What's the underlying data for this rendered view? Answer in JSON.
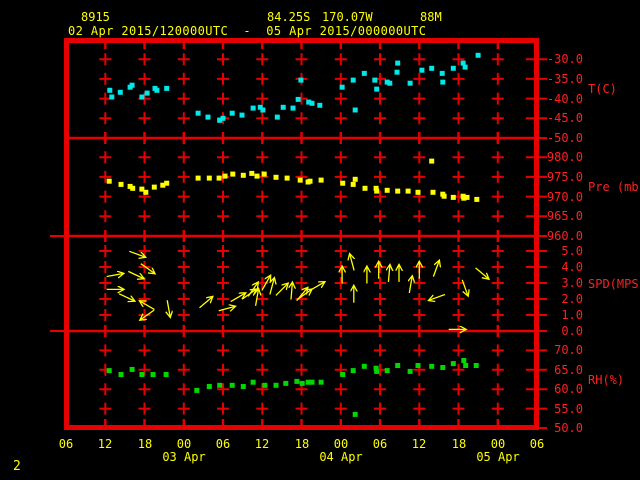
{
  "header": {
    "station_id": "8915",
    "latitude": "84.25S",
    "longitude": "170.07W",
    "elevation": "88M",
    "time_range": "02 Apr 2015/120000UTC  -  05 Apr 2015/000000UTC"
  },
  "page_number": "2",
  "colors": {
    "background": "#000000",
    "grid": "#e60000",
    "axis_text": "#ff2020",
    "header_text": "#ffff00",
    "temperature": "#00e8e8",
    "pressure": "#ffff00",
    "wind": "#ffff00",
    "humidity": "#00d800"
  },
  "chart_data": {
    "type": "scatter",
    "title": "02 Apr 2015/120000UTC - 05 Apr 2015/000000UTC",
    "x_axis": {
      "hours_span": 72,
      "tick_step_hours": 6,
      "hour_labels": [
        "06",
        "12",
        "18",
        "00",
        "06",
        "12",
        "18",
        "00",
        "06",
        "12",
        "18",
        "00",
        "06"
      ],
      "date_labels": [
        {
          "label": "03 Apr",
          "hour": 18
        },
        {
          "label": "04 Apr",
          "hour": 42
        },
        {
          "label": "05 Apr",
          "hour": 66
        }
      ]
    },
    "panels": [
      {
        "name": "temperature",
        "unit_label": "T(C)",
        "ticks": [
          -30,
          -35,
          -40,
          -45,
          -50
        ],
        "color": "#00e8e8",
        "points": [
          [
            6.7,
            -37.9
          ],
          [
            7,
            -39.6
          ],
          [
            8.3,
            -38.4
          ],
          [
            9.8,
            -37.1
          ],
          [
            10.1,
            -36.6
          ],
          [
            11.6,
            -39.6
          ],
          [
            12.4,
            -38.6
          ],
          [
            13.6,
            -37.4
          ],
          [
            13.9,
            -37.9
          ],
          [
            15.4,
            -37.4
          ],
          [
            20.2,
            -43.7
          ],
          [
            21.7,
            -44.7
          ],
          [
            23.5,
            -45.5
          ],
          [
            24,
            -45
          ],
          [
            25.4,
            -43.7
          ],
          [
            26.9,
            -44.2
          ],
          [
            28.6,
            -42.4
          ],
          [
            29.7,
            -42.2
          ],
          [
            30.1,
            -42.9
          ],
          [
            32.3,
            -44.7
          ],
          [
            33.2,
            -42.2
          ],
          [
            34.7,
            -42.4
          ],
          [
            35.5,
            -40.2
          ],
          [
            35.9,
            -35.3
          ],
          [
            37.1,
            -40.9
          ],
          [
            37.6,
            -41.2
          ],
          [
            38.8,
            -41.7
          ],
          [
            42.2,
            -37.1
          ],
          [
            43.9,
            -35.3
          ],
          [
            44.2,
            -42.9
          ],
          [
            45.6,
            -33.6
          ],
          [
            47.2,
            -35.3
          ],
          [
            47.5,
            -37.6
          ],
          [
            49.1,
            -35.8
          ],
          [
            49.5,
            -36.1
          ],
          [
            50.6,
            -33.3
          ],
          [
            50.7,
            -31
          ],
          [
            52.6,
            -36.1
          ],
          [
            54.4,
            -32.8
          ],
          [
            55.9,
            -32.3
          ],
          [
            57.5,
            -33.6
          ],
          [
            57.6,
            -35.8
          ],
          [
            59.2,
            -32.3
          ],
          [
            60.7,
            -31
          ],
          [
            61,
            -32
          ],
          [
            63,
            -29
          ]
        ]
      },
      {
        "name": "pressure",
        "unit_label": "Pre (mb)",
        "ticks": [
          980,
          975,
          970,
          965,
          960
        ],
        "color": "#ffff00",
        "points": [
          [
            6.6,
            973.9
          ],
          [
            8.4,
            973.1
          ],
          [
            9.8,
            972.6
          ],
          [
            10.2,
            972.1
          ],
          [
            11.6,
            971.9
          ],
          [
            12.2,
            971.1
          ],
          [
            13.5,
            972.4
          ],
          [
            14.8,
            972.9
          ],
          [
            15.4,
            973.4
          ],
          [
            20.2,
            974.7
          ],
          [
            21.9,
            974.7
          ],
          [
            23.4,
            974.7
          ],
          [
            24.3,
            975.2
          ],
          [
            25.5,
            975.7
          ],
          [
            27.1,
            975.4
          ],
          [
            28.4,
            975.9
          ],
          [
            29.2,
            975.2
          ],
          [
            30.3,
            975.7
          ],
          [
            32.1,
            974.9
          ],
          [
            33.8,
            974.7
          ],
          [
            35.8,
            974.2
          ],
          [
            37,
            973.7
          ],
          [
            37.3,
            973.9
          ],
          [
            39,
            974.2
          ],
          [
            42.3,
            973.4
          ],
          [
            43.9,
            973.1
          ],
          [
            44.2,
            974.4
          ],
          [
            45.7,
            972.1
          ],
          [
            47.4,
            972.1
          ],
          [
            47.5,
            971.4
          ],
          [
            49.1,
            971.6
          ],
          [
            50.7,
            971.4
          ],
          [
            52.3,
            971.4
          ],
          [
            53.8,
            971.1
          ],
          [
            55.9,
            979
          ],
          [
            56.1,
            971.1
          ],
          [
            57.6,
            970.6
          ],
          [
            57.8,
            970.1
          ],
          [
            59.2,
            969.8
          ],
          [
            60.7,
            970.1
          ],
          [
            60.8,
            969.6
          ],
          [
            61.3,
            969.8
          ],
          [
            62.8,
            969.3
          ]
        ]
      },
      {
        "name": "wind",
        "unit_label": "SPD(MPS)",
        "ticks": [
          5,
          4,
          3,
          2,
          1,
          0
        ],
        "color": "#ffff00",
        "arrows": [
          [
            10.9,
            4.8,
            -20
          ],
          [
            12.5,
            3.9,
            -35
          ],
          [
            7.5,
            3.5,
            10
          ],
          [
            10.7,
            3.5,
            -25
          ],
          [
            7.5,
            2.6,
            0
          ],
          [
            9.3,
            2.1,
            -25
          ],
          [
            12.4,
            1.6,
            150
          ],
          [
            12.4,
            1,
            215
          ],
          [
            15.7,
            1.4,
            -80
          ],
          [
            21.4,
            1.8,
            40
          ],
          [
            24.6,
            1.4,
            15
          ],
          [
            26.3,
            2.1,
            30
          ],
          [
            28,
            2.3,
            35
          ],
          [
            28.6,
            2.6,
            55
          ],
          [
            29.2,
            2.1,
            80
          ],
          [
            30.6,
            3,
            60
          ],
          [
            31.5,
            2.8,
            75
          ],
          [
            33,
            2.6,
            45
          ],
          [
            34.5,
            2.5,
            85
          ],
          [
            36.1,
            2.3,
            50
          ],
          [
            36.5,
            2.3,
            35
          ],
          [
            38.4,
            2.8,
            30
          ],
          [
            42.2,
            3.5,
            90
          ],
          [
            43.7,
            4.3,
            105
          ],
          [
            44,
            2.3,
            90
          ],
          [
            46,
            3.5,
            90
          ],
          [
            47.8,
            3.8,
            90
          ],
          [
            49.4,
            3.6,
            85
          ],
          [
            50.9,
            3.6,
            90
          ],
          [
            52.7,
            2.9,
            80
          ],
          [
            54,
            3.8,
            90
          ],
          [
            56.6,
            3.9,
            70
          ],
          [
            56.7,
            2.1,
            200
          ],
          [
            61,
            2.7,
            -70
          ],
          [
            63.6,
            3.6,
            -40
          ],
          [
            59.8,
            0.1,
            0
          ]
        ]
      },
      {
        "name": "humidity",
        "unit_label": "RH(%)",
        "ticks": [
          70,
          65,
          60,
          55,
          50
        ],
        "color": "#00d800",
        "points": [
          [
            6.6,
            64.8
          ],
          [
            8.4,
            63.8
          ],
          [
            10.1,
            65.1
          ],
          [
            11.6,
            63.8
          ],
          [
            13.3,
            63.8
          ],
          [
            15.3,
            63.8
          ],
          [
            20,
            59.7
          ],
          [
            21.9,
            60.7
          ],
          [
            23.5,
            61
          ],
          [
            25.4,
            61
          ],
          [
            27.1,
            60.7
          ],
          [
            28.6,
            61.8
          ],
          [
            30.4,
            61
          ],
          [
            32.1,
            61
          ],
          [
            33.6,
            61.5
          ],
          [
            35.3,
            62
          ],
          [
            36.1,
            61.5
          ],
          [
            37,
            61.8
          ],
          [
            37.6,
            61.8
          ],
          [
            39,
            61.8
          ],
          [
            42.3,
            63.8
          ],
          [
            43.9,
            64.8
          ],
          [
            44.2,
            53.5
          ],
          [
            45.6,
            65.9
          ],
          [
            47.4,
            65.4
          ],
          [
            47.5,
            64.6
          ],
          [
            49.1,
            64.8
          ],
          [
            50.7,
            66.1
          ],
          [
            52.6,
            64.6
          ],
          [
            53.8,
            66.1
          ],
          [
            55.9,
            65.9
          ],
          [
            57.6,
            65.6
          ],
          [
            59.2,
            66.6
          ],
          [
            60.8,
            67.4
          ],
          [
            61.1,
            66.1
          ],
          [
            62.7,
            66.1
          ]
        ]
      }
    ]
  }
}
